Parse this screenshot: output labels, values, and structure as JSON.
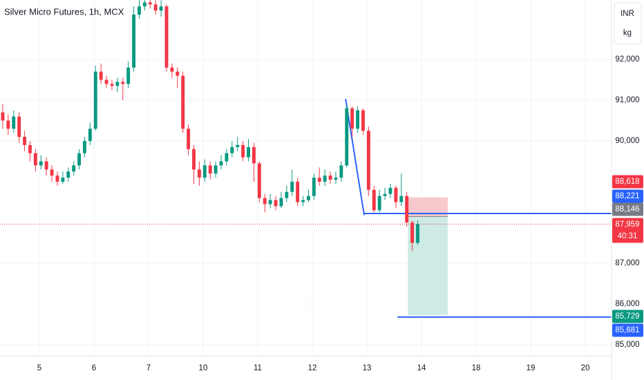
{
  "chart_data": {
    "type": "candlestick",
    "title": "Silver Micro Futures, 1h, MCX",
    "unit_labels": [
      "INR",
      "kg"
    ],
    "up_color": "#089981",
    "down_color": "#f23645",
    "grid": true,
    "xlim": [
      -0.5,
      111.5
    ],
    "xticks": [
      {
        "value": 6.7,
        "label": "5"
      },
      {
        "value": 16.7,
        "label": "6"
      },
      {
        "value": 26.7,
        "label": "7"
      },
      {
        "value": 36.7,
        "label": "10"
      },
      {
        "value": 46.7,
        "label": "11"
      },
      {
        "value": 56.7,
        "label": "12"
      },
      {
        "value": 66.7,
        "label": "13"
      },
      {
        "value": 76.7,
        "label": "14"
      },
      {
        "value": 86.7,
        "label": "18"
      },
      {
        "value": 96.7,
        "label": "19"
      },
      {
        "value": 106.7,
        "label": "20"
      }
    ],
    "ylim": [
      84729,
      93458
    ],
    "yticks": [
      {
        "value": 85000,
        "label": "85,000"
      },
      {
        "value": 86000,
        "label": "86,000"
      },
      {
        "value": 87000,
        "label": "87,000"
      },
      {
        "value": 90000,
        "label": "90,000"
      },
      {
        "value": 91000,
        "label": "91,000"
      },
      {
        "value": 92000,
        "label": "92,000"
      }
    ],
    "open": [
      90700,
      90500,
      90300,
      90600,
      90100,
      89900,
      89700,
      89400,
      89500,
      89300,
      89150,
      89000,
      89100,
      89250,
      89400,
      89700,
      90000,
      90300,
      91700,
      91500,
      91400,
      91350,
      91450,
      91400,
      91800,
      93100,
      93300,
      93400,
      93350,
      93200,
      93300,
      91800,
      91700,
      91600,
      90300,
      89800,
      89300,
      89100,
      89400,
      89200,
      89400,
      89500,
      89700,
      89850,
      89900,
      89600,
      89850,
      89450,
      88600,
      88450,
      88550,
      88400,
      88600,
      88750,
      89000,
      88500,
      88550,
      88650,
      89100,
      89000,
      89150,
      89050,
      89100,
      89400,
      90800,
      90300,
      90750,
      90250,
      88800,
      88300,
      88650,
      88700,
      88850,
      88500,
      88650,
      88000,
      87500
    ],
    "high": [
      90900,
      90650,
      90750,
      90700,
      90250,
      90000,
      89800,
      89650,
      89600,
      89400,
      89250,
      89250,
      89350,
      89500,
      89800,
      90100,
      90450,
      91850,
      91900,
      91600,
      91500,
      91550,
      91550,
      91950,
      93300,
      93450,
      93460,
      93460,
      93450,
      93450,
      93350,
      91900,
      91800,
      91700,
      90400,
      89900,
      89500,
      89550,
      89500,
      89500,
      89650,
      89800,
      90000,
      90100,
      90000,
      90050,
      89950,
      89500,
      88700,
      88700,
      88650,
      88750,
      88900,
      89300,
      89100,
      88650,
      88800,
      89200,
      89350,
      89300,
      89250,
      89250,
      89500,
      90900,
      90850,
      90850,
      90800,
      90350,
      88900,
      88800,
      88850,
      88950,
      88900,
      89200,
      88750,
      88050,
      88050
    ],
    "low": [
      90300,
      90150,
      90200,
      89950,
      89750,
      89500,
      89250,
      89300,
      89150,
      89000,
      88900,
      88950,
      89000,
      89150,
      89300,
      89600,
      89900,
      90250,
      91400,
      91300,
      91250,
      91200,
      91000,
      91300,
      91700,
      93000,
      93200,
      93250,
      93100,
      93050,
      91700,
      91550,
      91300,
      90200,
      89650,
      88950,
      88900,
      89000,
      89050,
      89100,
      89300,
      89400,
      89600,
      89750,
      89500,
      89500,
      89000,
      88500,
      88250,
      88350,
      88300,
      88350,
      88500,
      88650,
      88400,
      88400,
      88500,
      88550,
      88900,
      88900,
      88950,
      88950,
      89000,
      89350,
      90100,
      90200,
      90150,
      88650,
      88250,
      88250,
      88550,
      88600,
      88350,
      88400,
      87900,
      87300,
      87450
    ],
    "close": [
      90500,
      90300,
      90600,
      90100,
      89900,
      89700,
      89400,
      89500,
      89300,
      89150,
      89000,
      89100,
      89250,
      89400,
      89700,
      90000,
      90300,
      91700,
      91500,
      91400,
      91350,
      91450,
      91400,
      91800,
      93100,
      93300,
      93400,
      93350,
      93200,
      93300,
      91800,
      91700,
      91600,
      90300,
      89800,
      89300,
      89100,
      89400,
      89200,
      89400,
      89500,
      89700,
      89850,
      89900,
      89600,
      89850,
      89450,
      88600,
      88450,
      88550,
      88400,
      88600,
      88750,
      89000,
      88500,
      88550,
      88650,
      89100,
      89000,
      89150,
      89050,
      89100,
      89400,
      90800,
      90300,
      90750,
      90250,
      88800,
      88300,
      88650,
      88700,
      88850,
      88500,
      88650,
      88000,
      87500,
      87959
    ],
    "trend_line": {
      "x": [
        62.8,
        66.2
      ],
      "y": [
        91030,
        88180
      ],
      "color": "#2962ff"
    },
    "horizontal_lines": [
      {
        "value": 88221,
        "label": "88,221",
        "x_start": 66.2,
        "color": "#2962ff"
      },
      {
        "value": 85681,
        "label": "85,681",
        "x_start": 72.3,
        "color": "#2962ff"
      }
    ],
    "position": {
      "x": [
        74.2,
        81.5
      ],
      "stop": {
        "value": 88618,
        "label": "88,618",
        "color": "#f23645",
        "zone": "#f7c9cd"
      },
      "entry": {
        "value": 88146,
        "label": "88,146",
        "color": "#787b86"
      },
      "target": {
        "value": 85729,
        "label": "85,729",
        "color": "#089981",
        "zone": "#cdeae4"
      }
    },
    "current_price": {
      "value": 87959,
      "label": "87,959",
      "countdown": "40:31",
      "color": "#f23645"
    }
  }
}
